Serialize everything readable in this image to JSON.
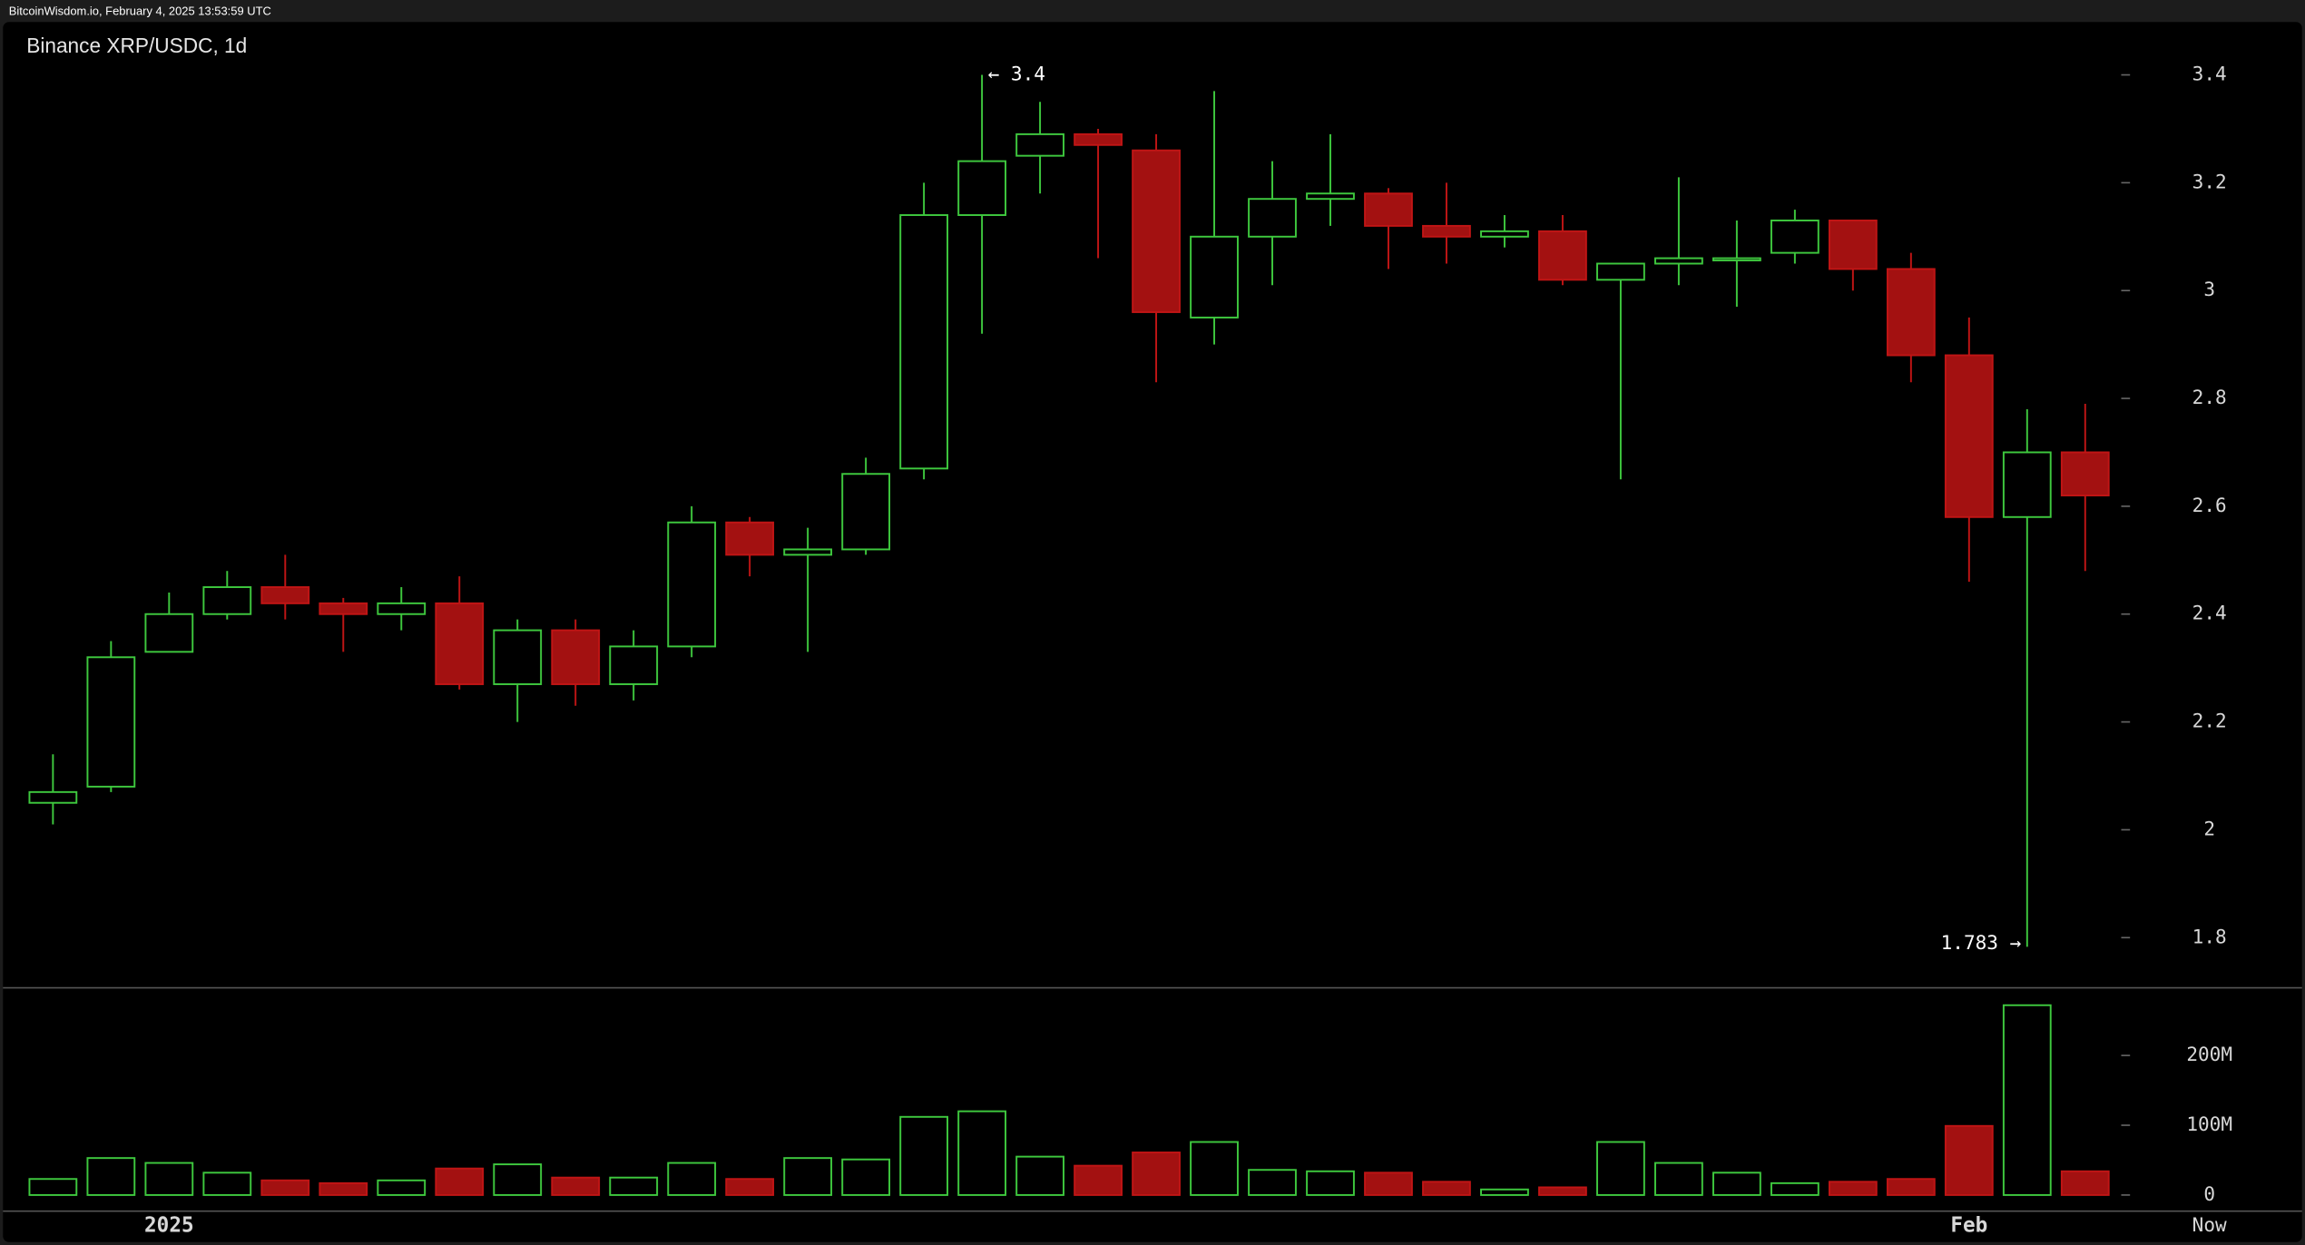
{
  "chart_data": {
    "type": "candlestick",
    "source": "BitcoinWisdom.io, February 4, 2025 13:53:59 UTC",
    "title": "Binance XRP/USDC, 1d",
    "categories": [
      null,
      null,
      "2025",
      null,
      null,
      null,
      null,
      null,
      null,
      null,
      null,
      null,
      null,
      null,
      null,
      null,
      null,
      null,
      null,
      null,
      null,
      null,
      null,
      null,
      null,
      null,
      null,
      null,
      null,
      null,
      null,
      null,
      null,
      "Feb",
      null,
      null
    ],
    "now_label": "Now",
    "open": [
      2.05,
      2.08,
      2.33,
      2.4,
      2.45,
      2.42,
      2.4,
      2.42,
      2.27,
      2.37,
      2.27,
      2.34,
      2.57,
      2.51,
      2.52,
      2.67,
      3.14,
      3.25,
      3.29,
      3.26,
      2.95,
      3.1,
      3.17,
      3.18,
      3.12,
      3.1,
      3.11,
      3.02,
      3.05,
      3.06,
      3.07,
      3.13,
      3.04,
      2.88,
      2.58,
      2.7
    ],
    "high": [
      2.14,
      2.35,
      2.44,
      2.48,
      2.51,
      2.43,
      2.45,
      2.47,
      2.39,
      2.39,
      2.37,
      2.6,
      2.58,
      2.56,
      2.69,
      3.2,
      3.4,
      3.35,
      3.3,
      3.29,
      3.37,
      3.24,
      3.29,
      3.19,
      3.2,
      3.14,
      3.14,
      3.05,
      3.21,
      3.13,
      3.15,
      3.13,
      3.07,
      2.95,
      2.78,
      2.79
    ],
    "low": [
      2.01,
      2.07,
      2.33,
      2.39,
      2.39,
      2.33,
      2.37,
      2.26,
      2.2,
      2.23,
      2.24,
      2.32,
      2.47,
      2.33,
      2.51,
      2.65,
      2.92,
      3.18,
      3.06,
      2.83,
      2.9,
      3.01,
      3.12,
      3.04,
      3.05,
      3.08,
      3.01,
      2.65,
      3.01,
      2.97,
      3.05,
      3.0,
      2.83,
      2.46,
      1.783,
      2.48
    ],
    "close": [
      2.07,
      2.32,
      2.4,
      2.45,
      2.42,
      2.4,
      2.42,
      2.27,
      2.37,
      2.27,
      2.34,
      2.57,
      2.51,
      2.52,
      2.66,
      3.14,
      3.24,
      3.29,
      3.27,
      2.96,
      3.1,
      3.17,
      3.18,
      3.12,
      3.1,
      3.11,
      3.02,
      3.05,
      3.06,
      3.06,
      3.13,
      3.04,
      2.88,
      2.58,
      2.7,
      2.62
    ],
    "volume": [
      23000000,
      53000000,
      46000000,
      32000000,
      21000000,
      17000000,
      21000000,
      38000000,
      44000000,
      25000000,
      25000000,
      46000000,
      23000000,
      53000000,
      51000000,
      112000000,
      120000000,
      55000000,
      42000000,
      61000000,
      76000000,
      36000000,
      34000000,
      32000000,
      19000000,
      8000000,
      11000000,
      76000000,
      46000000,
      32000000,
      17000000,
      19000000,
      23000000,
      99000000,
      272000000,
      34000000
    ],
    "ylim": [
      1.707,
      3.498
    ],
    "yticks": [
      1.8,
      2,
      2.2,
      2.4,
      2.6,
      2.8,
      3,
      3.2,
      3.4
    ],
    "y2lim": [
      0,
      297000000
    ],
    "y2ticks": [
      0,
      {
        "value": 100000000,
        "label": "100M"
      },
      {
        "value": 200000000,
        "label": "200M"
      }
    ],
    "annotations": [
      "← 3.4",
      "1.783 →"
    ],
    "up_color": "#3ec83e",
    "down_color": "#a31111"
  }
}
